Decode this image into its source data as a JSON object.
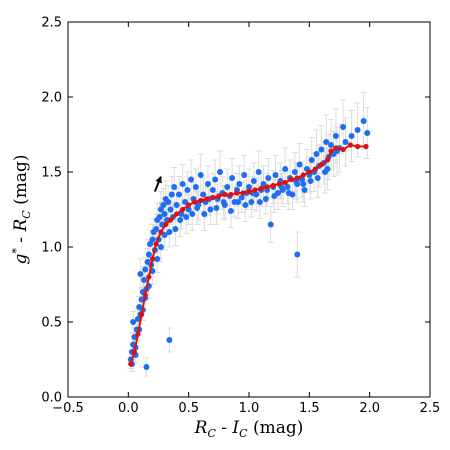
{
  "chart_data": {
    "type": "scatter",
    "title": "",
    "xlabel_parts": {
      "term1": "R",
      "term1_sub": "C",
      "operator": "-",
      "term2": "I",
      "term2_sub": "C",
      "unit": "(mag)"
    },
    "ylabel_parts": {
      "term1": "g",
      "term1_sup": "*",
      "operator": "-",
      "term2": "R",
      "term2_sub": "C",
      "unit": "(mag)"
    },
    "xlim": [
      -0.5,
      2.5
    ],
    "ylim": [
      0.0,
      2.5
    ],
    "x_ticks": [
      "−0.5",
      "0.0",
      "0.5",
      "1.0",
      "1.5",
      "2.0",
      "2.5"
    ],
    "y_ticks": [
      "0.0",
      "0.5",
      "1.0",
      "1.5",
      "2.0",
      "2.5"
    ],
    "x_tick_values": [
      -0.5,
      0.0,
      0.5,
      1.0,
      1.5,
      2.0,
      2.5
    ],
    "y_tick_values": [
      0.0,
      0.5,
      1.0,
      1.5,
      2.0,
      2.5
    ],
    "grid": false,
    "colors": {
      "points": "#1e6ef0",
      "errorbars": "#dcdcdc",
      "locus": "#e01010",
      "arrow": "#000000"
    },
    "arrow": {
      "from": [
        0.22,
        1.37
      ],
      "to": [
        0.27,
        1.47
      ]
    },
    "series": [
      {
        "kind": "scatter_with_errors",
        "points": [
          [
            0.02,
            0.25,
            0.06
          ],
          [
            0.03,
            0.3,
            0.05
          ],
          [
            0.04,
            0.35,
            0.07
          ],
          [
            0.03,
            0.22,
            0.05
          ],
          [
            0.05,
            0.4,
            0.06
          ],
          [
            0.06,
            0.33,
            0.05
          ],
          [
            0.07,
            0.45,
            0.08
          ],
          [
            0.04,
            0.5,
            0.07
          ],
          [
            0.08,
            0.52,
            0.06
          ],
          [
            0.09,
            0.6,
            0.07
          ],
          [
            0.1,
            0.55,
            0.06
          ],
          [
            0.06,
            0.28,
            0.05
          ],
          [
            0.11,
            0.65,
            0.08
          ],
          [
            0.12,
            0.7,
            0.07
          ],
          [
            0.13,
            0.78,
            0.09
          ],
          [
            0.1,
            0.82,
            0.1
          ],
          [
            0.14,
            0.85,
            0.08
          ],
          [
            0.15,
            0.72,
            0.07
          ],
          [
            0.16,
            0.9,
            0.09
          ],
          [
            0.17,
            0.95,
            0.1
          ],
          [
            0.18,
            1.02,
            0.09
          ],
          [
            0.19,
            0.88,
            0.08
          ],
          [
            0.2,
            1.05,
            0.1
          ],
          [
            0.21,
            1.1,
            0.09
          ],
          [
            0.22,
            0.98,
            0.08
          ],
          [
            0.23,
            1.12,
            0.1
          ],
          [
            0.24,
            1.18,
            0.11
          ],
          [
            0.25,
            1.05,
            0.09
          ],
          [
            0.26,
            1.2,
            0.1
          ],
          [
            0.27,
            1.25,
            0.12
          ],
          [
            0.28,
            1.15,
            0.1
          ],
          [
            0.29,
            1.28,
            0.11
          ],
          [
            0.3,
            1.22,
            0.1
          ],
          [
            0.31,
            1.32,
            0.12
          ],
          [
            0.32,
            1.18,
            0.1
          ],
          [
            0.33,
            1.3,
            0.11
          ],
          [
            0.35,
            1.25,
            0.1
          ],
          [
            0.36,
            1.35,
            0.12
          ],
          [
            0.37,
            1.2,
            0.1
          ],
          [
            0.38,
            1.4,
            0.13
          ],
          [
            0.4,
            1.28,
            0.11
          ],
          [
            0.42,
            1.35,
            0.12
          ],
          [
            0.44,
            1.22,
            0.1
          ],
          [
            0.45,
            1.42,
            0.13
          ],
          [
            0.47,
            1.3,
            0.11
          ],
          [
            0.49,
            1.38,
            0.12
          ],
          [
            0.5,
            1.25,
            0.1
          ],
          [
            0.52,
            1.45,
            0.13
          ],
          [
            0.54,
            1.32,
            0.11
          ],
          [
            0.56,
            1.4,
            0.12
          ],
          [
            0.58,
            1.28,
            0.1
          ],
          [
            0.6,
            1.48,
            0.14
          ],
          [
            0.62,
            1.35,
            0.11
          ],
          [
            0.64,
            1.3,
            0.1
          ],
          [
            0.66,
            1.42,
            0.12
          ],
          [
            0.68,
            1.25,
            0.1
          ],
          [
            0.7,
            1.38,
            0.11
          ],
          [
            0.72,
            1.45,
            0.13
          ],
          [
            0.74,
            1.32,
            0.1
          ],
          [
            0.76,
            1.5,
            0.14
          ],
          [
            0.78,
            1.36,
            0.11
          ],
          [
            0.8,
            1.28,
            0.1
          ],
          [
            0.82,
            1.4,
            0.12
          ],
          [
            0.84,
            1.34,
            0.11
          ],
          [
            0.86,
            1.46,
            0.13
          ],
          [
            0.88,
            1.3,
            0.1
          ],
          [
            0.9,
            1.38,
            0.11
          ],
          [
            0.92,
            1.42,
            0.12
          ],
          [
            0.94,
            1.33,
            0.1
          ],
          [
            0.96,
            1.48,
            0.13
          ],
          [
            0.98,
            1.36,
            0.11
          ],
          [
            1.0,
            1.4,
            0.12
          ],
          [
            1.02,
            1.3,
            0.1
          ],
          [
            1.04,
            1.44,
            0.12
          ],
          [
            1.06,
            1.35,
            0.11
          ],
          [
            1.08,
            1.5,
            0.14
          ],
          [
            1.1,
            1.38,
            0.11
          ],
          [
            1.12,
            1.42,
            0.12
          ],
          [
            1.14,
            1.32,
            0.1
          ],
          [
            1.16,
            1.46,
            0.13
          ],
          [
            1.18,
            1.15,
            0.12
          ],
          [
            1.2,
            1.4,
            0.11
          ],
          [
            1.22,
            1.48,
            0.13
          ],
          [
            1.24,
            1.36,
            0.11
          ],
          [
            1.26,
            1.44,
            0.12
          ],
          [
            1.28,
            1.38,
            0.11
          ],
          [
            1.3,
            1.52,
            0.14
          ],
          [
            1.32,
            1.4,
            0.11
          ],
          [
            1.34,
            1.46,
            0.12
          ],
          [
            1.36,
            1.35,
            0.1
          ],
          [
            1.38,
            1.5,
            0.13
          ],
          [
            1.4,
            1.42,
            0.12
          ],
          [
            1.42,
            1.55,
            0.14
          ],
          [
            1.44,
            1.45,
            0.12
          ],
          [
            1.46,
            1.38,
            0.11
          ],
          [
            1.48,
            1.52,
            0.13
          ],
          [
            1.5,
            1.48,
            0.12
          ],
          [
            1.52,
            1.58,
            0.15
          ],
          [
            1.54,
            1.5,
            0.13
          ],
          [
            1.56,
            1.62,
            0.16
          ],
          [
            1.58,
            1.54,
            0.14
          ],
          [
            1.6,
            1.65,
            0.16
          ],
          [
            1.62,
            1.56,
            0.14
          ],
          [
            1.64,
            1.7,
            0.18
          ],
          [
            1.66,
            1.6,
            0.15
          ],
          [
            1.68,
            1.68,
            0.17
          ],
          [
            1.7,
            1.62,
            0.15
          ],
          [
            1.72,
            1.74,
            0.18
          ],
          [
            1.75,
            1.66,
            0.16
          ],
          [
            1.78,
            1.8,
            0.18
          ],
          [
            1.8,
            1.7,
            0.16
          ],
          [
            1.85,
            1.74,
            0.17
          ],
          [
            1.9,
            1.78,
            0.18
          ],
          [
            1.95,
            1.84,
            0.19
          ],
          [
            1.98,
            1.76,
            0.17
          ],
          [
            1.63,
            1.5,
            0.14
          ],
          [
            1.4,
            0.95,
            0.15
          ],
          [
            0.34,
            0.38,
            0.08
          ],
          [
            0.15,
            0.2,
            0.06
          ],
          [
            0.09,
            0.45,
            0.07
          ],
          [
            0.12,
            0.58,
            0.07
          ],
          [
            0.14,
            0.66,
            0.08
          ],
          [
            0.17,
            0.74,
            0.08
          ],
          [
            0.2,
            0.84,
            0.09
          ],
          [
            0.24,
            0.92,
            0.09
          ],
          [
            0.27,
            1.0,
            0.1
          ],
          [
            0.3,
            1.08,
            0.1
          ],
          [
            0.34,
            1.1,
            0.1
          ],
          [
            0.39,
            1.12,
            0.11
          ],
          [
            0.43,
            1.18,
            0.11
          ],
          [
            0.48,
            1.2,
            0.11
          ],
          [
            0.53,
            1.22,
            0.11
          ],
          [
            0.57,
            1.26,
            0.11
          ],
          [
            0.63,
            1.22,
            0.11
          ],
          [
            0.67,
            1.32,
            0.11
          ],
          [
            0.73,
            1.26,
            0.11
          ],
          [
            0.79,
            1.3,
            0.11
          ],
          [
            0.85,
            1.24,
            0.11
          ],
          [
            0.91,
            1.3,
            0.11
          ],
          [
            0.97,
            1.28,
            0.11
          ],
          [
            1.03,
            1.36,
            0.11
          ],
          [
            1.09,
            1.3,
            0.11
          ],
          [
            1.15,
            1.38,
            0.11
          ],
          [
            1.21,
            1.34,
            0.11
          ],
          [
            1.27,
            1.4,
            0.11
          ],
          [
            1.33,
            1.36,
            0.11
          ],
          [
            1.39,
            1.44,
            0.12
          ],
          [
            1.45,
            1.42,
            0.12
          ],
          [
            1.51,
            1.44,
            0.12
          ],
          [
            1.57,
            1.46,
            0.13
          ],
          [
            1.65,
            1.52,
            0.14
          ],
          [
            1.73,
            1.64,
            0.16
          ]
        ]
      },
      {
        "kind": "locus_line",
        "points": [
          [
            0.02,
            0.22
          ],
          [
            0.05,
            0.3
          ],
          [
            0.08,
            0.42
          ],
          [
            0.11,
            0.55
          ],
          [
            0.14,
            0.68
          ],
          [
            0.17,
            0.8
          ],
          [
            0.2,
            0.92
          ],
          [
            0.23,
            1.02
          ],
          [
            0.27,
            1.1
          ],
          [
            0.31,
            1.15
          ],
          [
            0.35,
            1.18
          ],
          [
            0.4,
            1.22
          ],
          [
            0.45,
            1.25
          ],
          [
            0.5,
            1.28
          ],
          [
            0.55,
            1.3
          ],
          [
            0.6,
            1.31
          ],
          [
            0.65,
            1.32
          ],
          [
            0.7,
            1.33
          ],
          [
            0.75,
            1.34
          ],
          [
            0.8,
            1.35
          ],
          [
            0.85,
            1.35
          ],
          [
            0.9,
            1.36
          ],
          [
            0.95,
            1.36
          ],
          [
            1.0,
            1.37
          ],
          [
            1.05,
            1.38
          ],
          [
            1.1,
            1.39
          ],
          [
            1.15,
            1.4
          ],
          [
            1.2,
            1.41
          ],
          [
            1.25,
            1.42
          ],
          [
            1.3,
            1.43
          ],
          [
            1.35,
            1.45
          ],
          [
            1.4,
            1.46
          ],
          [
            1.45,
            1.48
          ],
          [
            1.5,
            1.5
          ],
          [
            1.55,
            1.52
          ],
          [
            1.6,
            1.55
          ],
          [
            1.65,
            1.58
          ],
          [
            1.68,
            1.64
          ],
          [
            1.72,
            1.66
          ],
          [
            1.78,
            1.65
          ],
          [
            1.84,
            1.68
          ],
          [
            1.9,
            1.67
          ],
          [
            1.97,
            1.67
          ]
        ]
      }
    ]
  }
}
